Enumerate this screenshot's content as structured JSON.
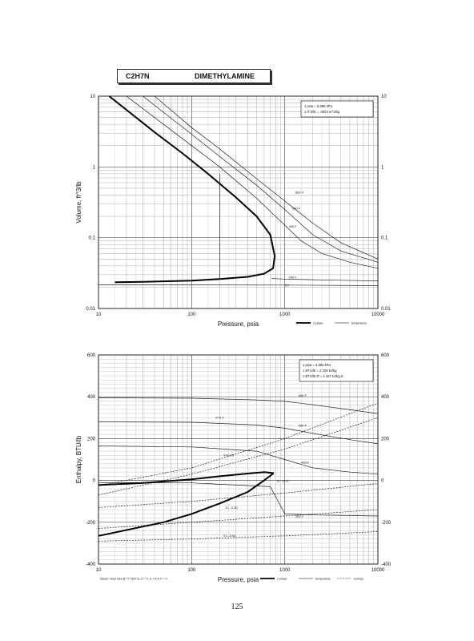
{
  "page": {
    "title_formula": "C2H7N",
    "title_name": "DIMETHYLAMINE",
    "page_number": "125"
  },
  "chart_data": [
    {
      "type": "line",
      "xscale": "log",
      "yscale": "log",
      "xlim": [
        10,
        10000
      ],
      "ylim": [
        0.01,
        10
      ],
      "xlabel": "Pressure,  psia",
      "ylabel": "Volume, ft^3/lb",
      "xticks": [
        "10",
        "100",
        "1000",
        "10000"
      ],
      "yticks": [
        "0.01",
        "0.1",
        "1",
        "10"
      ],
      "yticks_right": [
        "0.01",
        "0.1",
        "1",
        "10"
      ],
      "grid": true,
      "notes": [
        "1 psia = 6.895 kPa",
        "1 ft^3/lb = .0624 m^3/kg"
      ],
      "legend": {
        "placement": "bottom-right",
        "entries": [
          "2 phase",
          "temperature"
        ]
      },
      "saturation_dome": {
        "liquid": {
          "x": [
            15,
            30,
            60,
            100,
            200,
            400,
            600,
            750,
            780
          ],
          "y": [
            0.0235,
            0.0238,
            0.0243,
            0.0248,
            0.026,
            0.028,
            0.031,
            0.037,
            0.055
          ]
        },
        "vapor": {
          "x": [
            13,
            20,
            40,
            80,
            150,
            300,
            500,
            700,
            780
          ],
          "y": [
            10,
            6.4,
            3.1,
            1.55,
            0.8,
            0.37,
            0.2,
            0.11,
            0.055
          ]
        }
      },
      "series": [
        {
          "name": "0 F",
          "x": [
            10,
            100,
            1000,
            10000
          ],
          "y": [
            0.0215,
            0.0215,
            0.0214,
            0.021
          ]
        },
        {
          "name": "200 F",
          "x": [
            720,
            1000,
            2000,
            4000,
            10000
          ],
          "y": [
            0.0265,
            0.026,
            0.0255,
            0.025,
            0.0245
          ]
        },
        {
          "name": "400 F",
          "x": [
            20,
            50,
            100,
            200,
            500,
            1000,
            1500,
            2500,
            5000,
            10000
          ],
          "y": [
            10,
            4,
            2,
            1.0,
            0.36,
            0.15,
            0.09,
            0.06,
            0.045,
            0.037
          ]
        },
        {
          "name": "500 F",
          "x": [
            30,
            60,
            100,
            200,
            500,
            1000,
            2000,
            4000,
            10000
          ],
          "y": [
            10,
            4.9,
            2.9,
            1.4,
            0.55,
            0.25,
            0.11,
            0.065,
            0.045
          ]
        },
        {
          "name": "600 F",
          "x": [
            40,
            100,
            200,
            500,
            1000,
            2000,
            4000,
            10000
          ],
          "y": [
            10,
            3.6,
            1.8,
            0.68,
            0.33,
            0.16,
            0.085,
            0.05
          ]
        },
        {
          "name": "",
          "x": [
            200,
            200
          ],
          "y": [
            0.026,
            0.8
          ]
        }
      ]
    },
    {
      "type": "line",
      "xscale": "log",
      "xlim": [
        10,
        10000
      ],
      "ylim": [
        -400,
        600
      ],
      "xlabel": "Pressure,  psia",
      "ylabel": "Enthalpy, BTU/lb",
      "xticks": [
        "10",
        "100",
        "1000",
        "10000"
      ],
      "yticks": [
        "-400",
        "-200",
        "0",
        "200",
        "400",
        "600"
      ],
      "yticks_right": [
        "-400",
        "-200",
        "0",
        "200",
        "400",
        "600"
      ],
      "grid": true,
      "notes": [
        "1 psia = 6.895 kPa",
        "1 BTU/lb = 2.326 kJ/kg",
        "1 BTU/lb R = 4.187 kJ/kg K"
      ],
      "legend": {
        "placement": "bottom-right",
        "entries": [
          "2 phase",
          "temperature",
          "entropy"
        ]
      },
      "footnote": "Datum: Ideal Gas @ 77 F(25 C),  H = 0,  S = R ln P = 0",
      "saturation_dome": {
        "liquid": {
          "x": [
            10,
            50,
            100,
            200,
            400,
            600,
            760
          ],
          "y": [
            -265,
            -200,
            -160,
            -110,
            -55,
            0,
            35
          ]
        },
        "vapor": {
          "x": [
            10,
            30,
            100,
            200,
            400,
            600,
            760
          ],
          "y": [
            -22,
            -12,
            5,
            20,
            33,
            40,
            35
          ]
        }
      },
      "series": [
        {
          "name": "600 F",
          "x": [
            10,
            100,
            500,
            1000,
            2000,
            5000,
            10000
          ],
          "y": [
            395,
            393,
            385,
            378,
            362,
            338,
            320
          ]
        },
        {
          "name": "500 F",
          "x": [
            10,
            100,
            500,
            1000,
            2000,
            5000,
            10000
          ],
          "y": [
            280,
            278,
            265,
            250,
            225,
            195,
            175
          ]
        },
        {
          "name": "400 F",
          "x": [
            10,
            100,
            500,
            1000,
            2000,
            5000,
            10000
          ],
          "y": [
            165,
            160,
            140,
            100,
            60,
            40,
            30
          ]
        },
        {
          "name": "200 F",
          "x": [
            10,
            100,
            700,
            1000,
            2000,
            5000,
            10000
          ],
          "y": [
            -10,
            -12,
            -30,
            -160,
            -165,
            -168,
            -170
          ]
        },
        {
          "name": "S=0.2",
          "x": [
            10,
            100,
            1000,
            10000
          ],
          "y": [
            -25,
            60,
            200,
            370
          ]
        },
        {
          "name": "S=0.25",
          "x": [
            10,
            100,
            1000,
            10000
          ],
          "y": [
            -70,
            30,
            150,
            300
          ]
        },
        {
          "name": "S= -0.12",
          "x": [
            10,
            100,
            1000,
            10000
          ],
          "y": [
            -130,
            -100,
            -60,
            -15
          ]
        },
        {
          "name": "S= -0.30",
          "x": [
            10,
            100,
            1000,
            10000
          ],
          "y": [
            -230,
            -200,
            -170,
            -140
          ]
        },
        {
          "name": "S= -0.54",
          "x": [
            10,
            100,
            1000,
            10000
          ],
          "y": [
            -290,
            -280,
            -265,
            -245
          ]
        }
      ],
      "annotations": [
        "S=0.2",
        "S=0.25",
        "S= -0.12",
        "S= -0.30",
        "S= -0.54",
        "600 F",
        "500 F",
        "400 F",
        "200 F"
      ]
    }
  ]
}
